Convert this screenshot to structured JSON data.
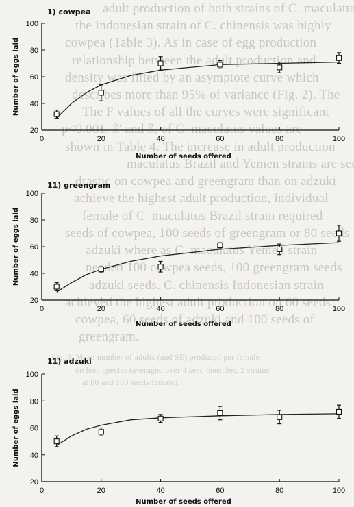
{
  "background_text": [
    "adult production of both strains of C. maculatus",
    "the Indonesian strain of C. chinensis was highly",
    "cowpea (Table 3). As in case of egg production",
    "relationship between the adult production and",
    "density was fitted by an asymptote curve which",
    "describes more than 95% of variance (Fig. 2). The",
    "The F values of all the curves were significant",
    "p<0.001. ß' and ß, of C. maculatus values are",
    "shown in Table 4. The increase in adult production",
    "maculatus Brazil and Yemen strains are seen",
    "drastic on cowpea and greengram than on adzuki",
    "achieve the highest adult production, individual",
    "female of C. maculatus Brazil strain required",
    "seeds of cowpea, 100 seeds of greengram or 80 seeds",
    "adzuki where as C. maculatus Yemen strain",
    "needed 100 cowpea seeds, 100 greengram seeds",
    "adzuki seeds. C. chinensis Indonesian strain",
    "achieved the highest adult production on 60 seeds",
    "cowpea, 60 seeds of adzuki and 100 seeds of",
    "greengram.",
    "Fig. 3. Mean number of adults (and SE) produced per female",
    "on host species (averaged over 4 seed densities, 2 strains",
    "at 80 and 100 seeds/female)."
  ],
  "chart_data": [
    {
      "type": "scatter",
      "title": "1) cowpea",
      "xlabel": "Number of seeds offered",
      "ylabel": "Number of eggs laid",
      "xlim": [
        0,
        100
      ],
      "ylim": [
        20,
        100
      ],
      "xticks": [
        0,
        20,
        40,
        60,
        80,
        100
      ],
      "yticks": [
        20,
        40,
        60,
        80,
        100
      ],
      "points": [
        {
          "x": 5,
          "y": 32,
          "err": 3
        },
        {
          "x": 20,
          "y": 48,
          "err": 6
        },
        {
          "x": 40,
          "y": 70,
          "err": 5
        },
        {
          "x": 60,
          "y": 69,
          "err": 3
        },
        {
          "x": 80,
          "y": 67,
          "err": 4
        },
        {
          "x": 100,
          "y": 74,
          "err": 4
        }
      ],
      "fit_curve": [
        [
          5,
          29
        ],
        [
          10,
          40
        ],
        [
          15,
          48
        ],
        [
          20,
          54
        ],
        [
          30,
          61
        ],
        [
          40,
          65
        ],
        [
          60,
          69
        ],
        [
          80,
          70
        ],
        [
          100,
          71
        ]
      ]
    },
    {
      "type": "scatter",
      "title": "11) greengram",
      "xlabel": "Number of seeds offered",
      "ylabel": "Number of eggs laid",
      "xlim": [
        0,
        100
      ],
      "ylim": [
        20,
        100
      ],
      "xticks": [
        0,
        20,
        40,
        60,
        80,
        100
      ],
      "yticks": [
        20,
        40,
        60,
        80,
        100
      ],
      "points": [
        {
          "x": 5,
          "y": 30,
          "err": 3
        },
        {
          "x": 20,
          "y": 43,
          "err": 2
        },
        {
          "x": 40,
          "y": 45,
          "err": 4
        },
        {
          "x": 60,
          "y": 61,
          "err": 2
        },
        {
          "x": 80,
          "y": 58,
          "err": 4
        },
        {
          "x": 100,
          "y": 70,
          "err": 6
        }
      ],
      "fit_curve": [
        [
          5,
          26
        ],
        [
          10,
          33
        ],
        [
          15,
          39
        ],
        [
          20,
          43
        ],
        [
          30,
          49
        ],
        [
          40,
          53
        ],
        [
          60,
          58
        ],
        [
          80,
          61
        ],
        [
          100,
          63
        ]
      ]
    },
    {
      "type": "scatter",
      "title": "11) adzuki",
      "xlabel": "Number of seeds offered",
      "ylabel": "Number of eggs laid",
      "xlim": [
        0,
        100
      ],
      "ylim": [
        20,
        100
      ],
      "xticks": [
        0,
        20,
        40,
        60,
        80,
        100
      ],
      "yticks": [
        20,
        40,
        60,
        80,
        100
      ],
      "points": [
        {
          "x": 5,
          "y": 50,
          "err": 4
        },
        {
          "x": 20,
          "y": 57,
          "err": 3
        },
        {
          "x": 40,
          "y": 67,
          "err": 3
        },
        {
          "x": 60,
          "y": 71,
          "err": 5
        },
        {
          "x": 80,
          "y": 68,
          "err": 5
        },
        {
          "x": 100,
          "y": 72,
          "err": 5
        }
      ],
      "fit_curve": [
        [
          5,
          47
        ],
        [
          10,
          54
        ],
        [
          15,
          59
        ],
        [
          20,
          62
        ],
        [
          30,
          66
        ],
        [
          40,
          67.5
        ],
        [
          60,
          69
        ],
        [
          80,
          70
        ],
        [
          100,
          70.5
        ]
      ]
    }
  ]
}
